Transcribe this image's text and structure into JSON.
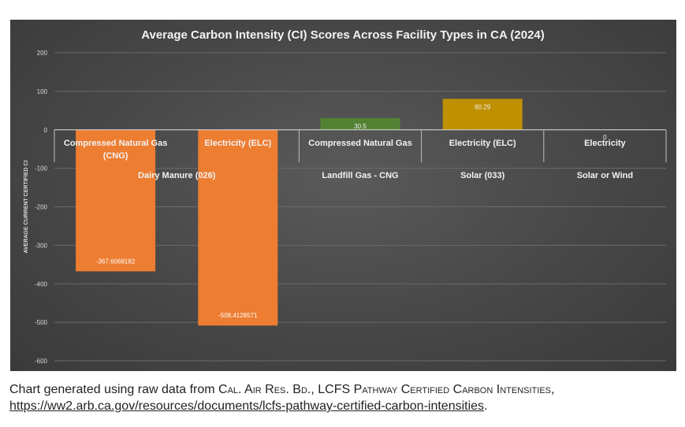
{
  "chart_data": {
    "type": "bar",
    "title": "Average Carbon Intensity (CI) Scores Across Facility Types in CA (2024)",
    "ylabel": "AVERAGE CURRENT CERTIFIED CI",
    "xlabel": "",
    "ylim": [
      -600,
      200
    ],
    "yticks": [
      200,
      100,
      0,
      -100,
      -200,
      -300,
      -400,
      -500,
      -600
    ],
    "ytick_labels": [
      "200",
      "100",
      "0",
      "-100",
      "-200",
      "-300",
      "-400",
      "-500",
      "-600"
    ],
    "grid": true,
    "categories": [
      {
        "label": "Compressed Natural Gas (CNG)",
        "group": "Dairy Manure (026)"
      },
      {
        "label": "Electricity (ELC)",
        "group": "Dairy Manure (026)"
      },
      {
        "label": "Compressed Natural Gas",
        "group": "Landfill Gas - CNG"
      },
      {
        "label": "Electricity (ELC)",
        "group": "Solar (033)"
      },
      {
        "label": "Electricity",
        "group": "Solar or Wind"
      }
    ],
    "groups": [
      "Dairy Manure (026)",
      "Landfill Gas - CNG",
      "Solar (033)",
      "Solar or Wind"
    ],
    "values": [
      -367.6068182,
      -508.4128571,
      30.5,
      80.29,
      0
    ],
    "value_labels": [
      "-367.6068182",
      "-508.4128571",
      "30.5",
      "80.29",
      "0"
    ],
    "colors": [
      "#ED7D31",
      "#ED7D31",
      "#548235",
      "#BF9000",
      "#ED7D31"
    ]
  },
  "caption": {
    "prefix": "Chart generated using raw data from ",
    "source": "Cal. Air Res. Bd.",
    "sep": ", ",
    "dataset": "LCFS Pathway Certified Carbon Intensities",
    "comma": ",",
    "url": "https://ww2.arb.ca.gov/resources/documents/lcfs-pathway-certified-carbon-intensities",
    "end": "."
  }
}
